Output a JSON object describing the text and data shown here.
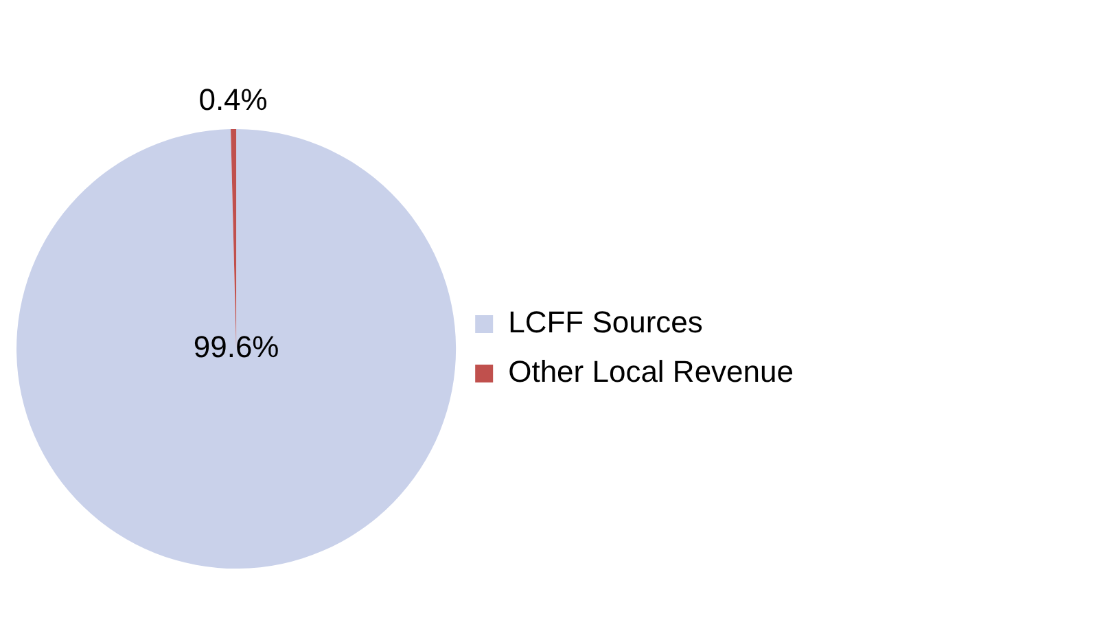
{
  "chart_data": {
    "type": "pie",
    "categories": [
      "LCFF Sources",
      "Other Local Revenue"
    ],
    "values": [
      99.6,
      0.4
    ],
    "colors": [
      "#c9d1ea",
      "#c0504d"
    ],
    "value_labels": [
      "99.6%",
      "0.4%"
    ],
    "legend": "right"
  }
}
